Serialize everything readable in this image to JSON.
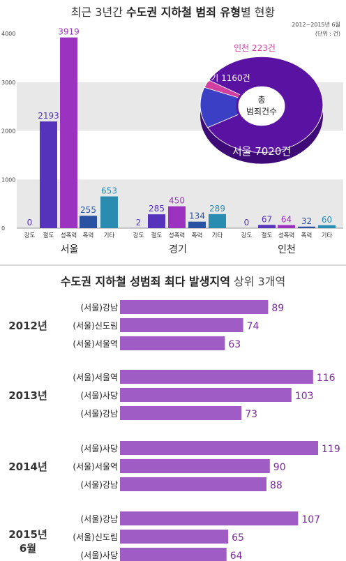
{
  "title1": {
    "plain": "최근 3년간",
    "bold": "수도권 지하철 범죄 유형",
    "suffix": "별 현황"
  },
  "note": {
    "period": "2012~2015년 6월",
    "unit": "(단위 : 건)"
  },
  "title2": {
    "bold": "수도권 지하철 성범죄 최다 발생지역",
    "plain": "상위 3개역"
  },
  "colors": {
    "강도": "#5533bb",
    "절도": "#5533bb",
    "성폭력": "#9b33c0",
    "폭력": "#2952a3",
    "기타": "#2a8cb0",
    "hbar": "#9e5cc4",
    "gridBand": "#e8e8e8"
  },
  "chart_data": [
    {
      "type": "bar",
      "categories": [
        "강도",
        "절도",
        "성폭력",
        "폭력",
        "기타"
      ],
      "groups": [
        "서울",
        "경기",
        "인천"
      ],
      "series": [
        {
          "name": "서울",
          "values": [
            0,
            2193,
            3919,
            255,
            653
          ]
        },
        {
          "name": "경기",
          "values": [
            2,
            285,
            450,
            134,
            289
          ]
        },
        {
          "name": "인천",
          "values": [
            0,
            67,
            64,
            32,
            60
          ]
        }
      ],
      "yticks": [
        0,
        1000,
        2000,
        3000,
        4000
      ],
      "ylim": [
        0,
        4000
      ],
      "grid": true
    },
    {
      "type": "pie",
      "center_label": [
        "총",
        "범죄건수"
      ],
      "slices": [
        {
          "label": "서울",
          "value": 7020,
          "text": "서울 7020건",
          "color": "#5a12a3"
        },
        {
          "label": "경기",
          "value": 1160,
          "text": "경기 1160건",
          "color": "#3b3fc4"
        },
        {
          "label": "인천",
          "value": 223,
          "text": "인천 223건",
          "color": "#d23fa0"
        }
      ]
    },
    {
      "type": "bar",
      "orientation": "horizontal",
      "xlim": [
        0,
        119
      ],
      "groups": [
        {
          "year": [
            "2012년"
          ],
          "items": [
            {
              "label": "(서울)강남",
              "value": 89
            },
            {
              "label": "(서울)신도림",
              "value": 74
            },
            {
              "label": "(서울)서울역",
              "value": 63
            }
          ]
        },
        {
          "year": [
            "2013년"
          ],
          "items": [
            {
              "label": "(서울)서울역",
              "value": 116
            },
            {
              "label": "(서울)사당",
              "value": 103
            },
            {
              "label": "(서울)강남",
              "value": 73
            }
          ]
        },
        {
          "year": [
            "2014년"
          ],
          "items": [
            {
              "label": "(서울)사당",
              "value": 119
            },
            {
              "label": "(서울)서울역",
              "value": 90
            },
            {
              "label": "(서울)강남",
              "value": 88
            }
          ]
        },
        {
          "year": [
            "2015년",
            "6월"
          ],
          "items": [
            {
              "label": "(서울)강남",
              "value": 107
            },
            {
              "label": "(서울)신도림",
              "value": 65
            },
            {
              "label": "(서울)사당",
              "value": 64
            }
          ]
        }
      ]
    }
  ]
}
